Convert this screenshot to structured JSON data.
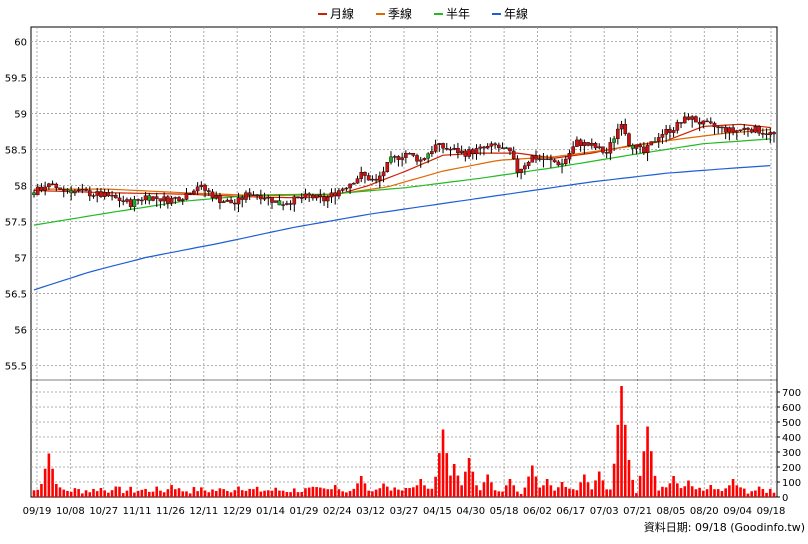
{
  "legend": [
    {
      "label": "月線",
      "color": "#cc2200"
    },
    {
      "label": "季線",
      "color": "#e06a00"
    },
    {
      "label": "半年",
      "color": "#22bb22"
    },
    {
      "label": "年線",
      "color": "#1e5fd6"
    }
  ],
  "source_note": "資料日期: 09/18  (Goodinfo.tw)",
  "colors": {
    "up": "#cc1111",
    "down": "#cc1111",
    "up_alt": "#22aa22",
    "volume": "#ff0000",
    "grid": "#999999"
  },
  "chart_data": [
    {
      "type": "candlestick",
      "ylim": [
        55.3,
        60.2
      ],
      "y_ticks": [
        55.5,
        56,
        56.5,
        57,
        57.5,
        58,
        58.5,
        59,
        59.5,
        60
      ],
      "x_tick_labels": [
        "09/19",
        "10/08",
        "10/27",
        "11/11",
        "11/26",
        "12/11",
        "12/29",
        "01/14",
        "01/29",
        "02/24",
        "03/12",
        "03/27",
        "04/15",
        "04/30",
        "05/18",
        "06/02",
        "06/17",
        "07/03",
        "07/21",
        "08/05",
        "08/20",
        "09/04",
        "09/18"
      ],
      "grid": true,
      "price_keypoints": [
        [
          0,
          57.9
        ],
        [
          3,
          58.0
        ],
        [
          8,
          57.95
        ],
        [
          14,
          57.9
        ],
        [
          20,
          57.85
        ],
        [
          26,
          57.75
        ],
        [
          30,
          57.85
        ],
        [
          36,
          57.8
        ],
        [
          40,
          57.85
        ],
        [
          44,
          58.0
        ],
        [
          50,
          57.8
        ],
        [
          54,
          57.75
        ],
        [
          58,
          57.9
        ],
        [
          62,
          57.85
        ],
        [
          66,
          57.75
        ],
        [
          70,
          57.8
        ],
        [
          74,
          57.85
        ],
        [
          78,
          57.8
        ],
        [
          84,
          58.0
        ],
        [
          88,
          58.15
        ],
        [
          92,
          58.05
        ],
        [
          96,
          58.35
        ],
        [
          100,
          58.45
        ],
        [
          104,
          58.35
        ],
        [
          108,
          58.55
        ],
        [
          112,
          58.5
        ],
        [
          116,
          58.45
        ],
        [
          120,
          58.5
        ],
        [
          124,
          58.55
        ],
        [
          128,
          58.45
        ],
        [
          130,
          58.2
        ],
        [
          134,
          58.4
        ],
        [
          138,
          58.35
        ],
        [
          142,
          58.3
        ],
        [
          146,
          58.6
        ],
        [
          150,
          58.55
        ],
        [
          154,
          58.45
        ],
        [
          158,
          58.9
        ],
        [
          160,
          58.6
        ],
        [
          164,
          58.45
        ],
        [
          168,
          58.7
        ],
        [
          172,
          58.8
        ],
        [
          176,
          58.95
        ],
        [
          180,
          58.85
        ],
        [
          184,
          58.8
        ],
        [
          188,
          58.75
        ],
        [
          192,
          58.8
        ],
        [
          196,
          58.75
        ],
        [
          199,
          58.7
        ]
      ],
      "moving_averages": [
        {
          "name": "月線",
          "color": "#cc2200",
          "points": [
            [
              0,
              57.93
            ],
            [
              20,
              57.9
            ],
            [
              40,
              57.88
            ],
            [
              60,
              57.84
            ],
            [
              70,
              57.83
            ],
            [
              80,
              57.85
            ],
            [
              90,
              58.0
            ],
            [
              100,
              58.2
            ],
            [
              110,
              58.42
            ],
            [
              120,
              58.45
            ],
            [
              130,
              58.45
            ],
            [
              140,
              58.38
            ],
            [
              150,
              58.45
            ],
            [
              160,
              58.55
            ],
            [
              170,
              58.62
            ],
            [
              180,
              58.82
            ],
            [
              190,
              58.85
            ],
            [
              199,
              58.8
            ]
          ]
        },
        {
          "name": "季線",
          "color": "#e06a00",
          "points": [
            [
              0,
              57.95
            ],
            [
              20,
              57.95
            ],
            [
              40,
              57.9
            ],
            [
              60,
              57.86
            ],
            [
              80,
              57.87
            ],
            [
              95,
              57.98
            ],
            [
              110,
              58.2
            ],
            [
              125,
              58.35
            ],
            [
              140,
              58.4
            ],
            [
              155,
              58.5
            ],
            [
              170,
              58.62
            ],
            [
              185,
              58.72
            ],
            [
              199,
              58.78
            ]
          ]
        },
        {
          "name": "半年",
          "color": "#22bb22",
          "points": [
            [
              0,
              57.45
            ],
            [
              20,
              57.62
            ],
            [
              40,
              57.78
            ],
            [
              60,
              57.87
            ],
            [
              80,
              57.88
            ],
            [
              100,
              57.97
            ],
            [
              120,
              58.1
            ],
            [
              140,
              58.25
            ],
            [
              160,
              58.42
            ],
            [
              180,
              58.58
            ],
            [
              199,
              58.65
            ]
          ]
        },
        {
          "name": "年線",
          "color": "#1e5fd6",
          "points": [
            [
              0,
              56.55
            ],
            [
              15,
              56.8
            ],
            [
              30,
              57.0
            ],
            [
              50,
              57.2
            ],
            [
              70,
              57.42
            ],
            [
              90,
              57.6
            ],
            [
              110,
              57.75
            ],
            [
              130,
              57.9
            ],
            [
              150,
              58.05
            ],
            [
              170,
              58.17
            ],
            [
              185,
              58.23
            ],
            [
              199,
              58.28
            ]
          ]
        }
      ]
    },
    {
      "type": "bar",
      "ylim": [
        0,
        780
      ],
      "y_ticks": [
        0,
        100,
        200,
        300,
        400,
        500,
        600,
        700
      ],
      "volume_keypoints": [
        [
          3,
          110
        ],
        [
          4,
          290
        ],
        [
          9,
          40
        ],
        [
          18,
          60
        ],
        [
          22,
          70
        ],
        [
          28,
          40
        ],
        [
          33,
          55
        ],
        [
          37,
          80
        ],
        [
          45,
          60
        ],
        [
          52,
          40
        ],
        [
          55,
          70
        ],
        [
          62,
          40
        ],
        [
          70,
          50
        ],
        [
          76,
          60
        ],
        [
          81,
          80
        ],
        [
          88,
          140
        ],
        [
          94,
          90
        ],
        [
          100,
          60
        ],
        [
          104,
          120
        ],
        [
          110,
          450
        ],
        [
          113,
          220
        ],
        [
          117,
          260
        ],
        [
          122,
          150
        ],
        [
          128,
          120
        ],
        [
          134,
          210
        ],
        [
          138,
          120
        ],
        [
          142,
          100
        ],
        [
          148,
          150
        ],
        [
          152,
          170
        ],
        [
          158,
          740
        ],
        [
          159,
          380
        ],
        [
          165,
          470
        ],
        [
          172,
          140
        ],
        [
          176,
          110
        ],
        [
          182,
          80
        ],
        [
          188,
          120
        ],
        [
          196,
          30
        ]
      ]
    }
  ]
}
